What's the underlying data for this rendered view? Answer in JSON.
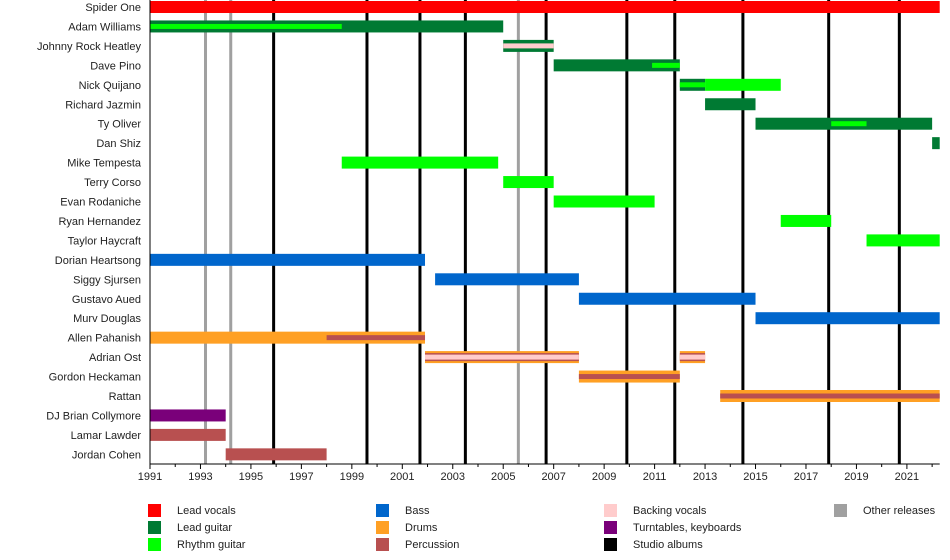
{
  "chart_data": {
    "type": "timeline",
    "title": "",
    "xlim": [
      1991,
      2022.3
    ],
    "x_ticks": [
      "1991",
      "1993",
      "1995",
      "1997",
      "1999",
      "2001",
      "2003",
      "2005",
      "2007",
      "2009",
      "2011",
      "2013",
      "2015",
      "2017",
      "2019",
      "2021"
    ],
    "colors": {
      "lead_vocals": "#ff0000",
      "lead_guitar": "#007a33",
      "rhythm_guitar": "#00ff00",
      "bass": "#0066cc",
      "drums": "#ffa024",
      "percussion": "#b85050",
      "backing_vocals": "#ffcccc",
      "turntables": "#7a007a",
      "studio_albums": "#000000",
      "other_releases": "#a0a0a0"
    },
    "members": [
      {
        "name": "Spider One",
        "bars": [
          {
            "role": "lead_vocals",
            "start": 1991.0,
            "end": 2022.3
          }
        ]
      },
      {
        "name": "Adam Williams",
        "bars": [
          {
            "role": "lead_guitar",
            "start": 1991.0,
            "end": 2005.0,
            "stripe": "rhythm_guitar",
            "stripe_start": 1991.0,
            "stripe_end": 1998.6
          }
        ]
      },
      {
        "name": "Johnny Rock Heatley",
        "bars": [
          {
            "role": "lead_guitar",
            "start": 2005.0,
            "end": 2007.0,
            "stripe": "backing_vocals",
            "stripe_start": 2005.0,
            "stripe_end": 2007.0
          }
        ]
      },
      {
        "name": "Dave Pino",
        "bars": [
          {
            "role": "lead_guitar",
            "start": 2007.0,
            "end": 2012.0,
            "stripe": "rhythm_guitar",
            "stripe_start": 2010.9,
            "stripe_end": 2012.0
          }
        ]
      },
      {
        "name": "Nick Quijano",
        "bars": [
          {
            "role": "lead_guitar",
            "start": 2012.0,
            "end": 2013.0,
            "stripe": "rhythm_guitar",
            "stripe_start": 2012.0,
            "stripe_end": 2013.0
          },
          {
            "role": "rhythm_guitar",
            "start": 2013.0,
            "end": 2016.0
          }
        ]
      },
      {
        "name": "Richard Jazmin",
        "bars": [
          {
            "role": "lead_guitar",
            "start": 2013.0,
            "end": 2015.0
          }
        ]
      },
      {
        "name": "Ty Oliver",
        "bars": [
          {
            "role": "lead_guitar",
            "start": 2015.0,
            "end": 2022.0,
            "stripe": "rhythm_guitar",
            "stripe_start": 2018.0,
            "stripe_end": 2019.4
          }
        ]
      },
      {
        "name": "Dan Shiz",
        "bars": [
          {
            "role": "lead_guitar",
            "start": 2022.0,
            "end": 2022.3
          }
        ]
      },
      {
        "name": "Mike Tempesta",
        "bars": [
          {
            "role": "rhythm_guitar",
            "start": 1998.6,
            "end": 2004.8
          }
        ]
      },
      {
        "name": "Terry Corso",
        "bars": [
          {
            "role": "rhythm_guitar",
            "start": 2005.0,
            "end": 2007.0
          }
        ]
      },
      {
        "name": "Evan Rodaniche",
        "bars": [
          {
            "role": "rhythm_guitar",
            "start": 2007.0,
            "end": 2011.0
          }
        ]
      },
      {
        "name": "Ryan Hernandez",
        "bars": [
          {
            "role": "rhythm_guitar",
            "start": 2016.0,
            "end": 2018.0
          }
        ]
      },
      {
        "name": "Taylor Haycraft",
        "bars": [
          {
            "role": "rhythm_guitar",
            "start": 2019.4,
            "end": 2022.3
          }
        ]
      },
      {
        "name": "Dorian Heartsong",
        "bars": [
          {
            "role": "bass",
            "start": 1991.0,
            "end": 2001.9
          }
        ]
      },
      {
        "name": "Siggy Sjursen",
        "bars": [
          {
            "role": "bass",
            "start": 2002.3,
            "end": 2008.0
          }
        ]
      },
      {
        "name": "Gustavo Aued",
        "bars": [
          {
            "role": "bass",
            "start": 2008.0,
            "end": 2015.0
          }
        ]
      },
      {
        "name": "Murv Douglas",
        "bars": [
          {
            "role": "bass",
            "start": 2015.0,
            "end": 2022.3
          }
        ]
      },
      {
        "name": "Allen Pahanish",
        "bars": [
          {
            "role": "drums",
            "start": 1991.0,
            "end": 2001.9,
            "stripe": "percussion",
            "stripe_start": 1998.0,
            "stripe_end": 2001.9
          }
        ]
      },
      {
        "name": "Adrian Ost",
        "bars": [
          {
            "role": "drums",
            "start": 2001.9,
            "end": 2008.0,
            "stripe": "backing_vocals",
            "stripe_start": 2001.9,
            "stripe_end": 2008.0,
            "edge": "percussion"
          },
          {
            "role": "drums",
            "start": 2012.0,
            "end": 2013.0,
            "stripe": "backing_vocals",
            "stripe_start": 2012.0,
            "stripe_end": 2013.0,
            "edge": "percussion"
          }
        ]
      },
      {
        "name": "Gordon Heckaman",
        "bars": [
          {
            "role": "drums",
            "start": 2008.0,
            "end": 2012.0,
            "stripe": "percussion",
            "stripe_start": 2008.0,
            "stripe_end": 2012.0
          }
        ]
      },
      {
        "name": "Rattan",
        "bars": [
          {
            "role": "drums",
            "start": 2013.6,
            "end": 2022.3,
            "stripe": "percussion",
            "stripe_start": 2013.6,
            "stripe_end": 2022.3
          }
        ]
      },
      {
        "name": "DJ Brian Collymore",
        "bars": [
          {
            "role": "turntables",
            "start": 1991.0,
            "end": 1994.0
          }
        ]
      },
      {
        "name": "Lamar Lawder",
        "bars": [
          {
            "role": "percussion",
            "start": 1991.0,
            "end": 1994.0
          }
        ]
      },
      {
        "name": "Jordan Cohen",
        "bars": [
          {
            "role": "percussion",
            "start": 1994.0,
            "end": 1998.0
          }
        ]
      }
    ],
    "studio_albums": [
      1995.9,
      1999.6,
      2001.7,
      2003.5,
      2006.7,
      2009.9,
      2011.8,
      2014.5,
      2017.9,
      2020.7
    ],
    "other_releases": [
      1993.2,
      1994.2,
      2005.6
    ],
    "legend": [
      {
        "key": "lead_vocals",
        "label": "Lead vocals"
      },
      {
        "key": "lead_guitar",
        "label": "Lead guitar"
      },
      {
        "key": "rhythm_guitar",
        "label": "Rhythm guitar"
      },
      {
        "key": "bass",
        "label": "Bass"
      },
      {
        "key": "drums",
        "label": "Drums"
      },
      {
        "key": "percussion",
        "label": "Percussion"
      },
      {
        "key": "backing_vocals",
        "label": "Backing vocals"
      },
      {
        "key": "turntables",
        "label": "Turntables, keyboards"
      },
      {
        "key": "studio_albums",
        "label": "Studio albums"
      },
      {
        "key": "other_releases",
        "label": "Other releases"
      }
    ],
    "legend_placement": "bottom"
  }
}
